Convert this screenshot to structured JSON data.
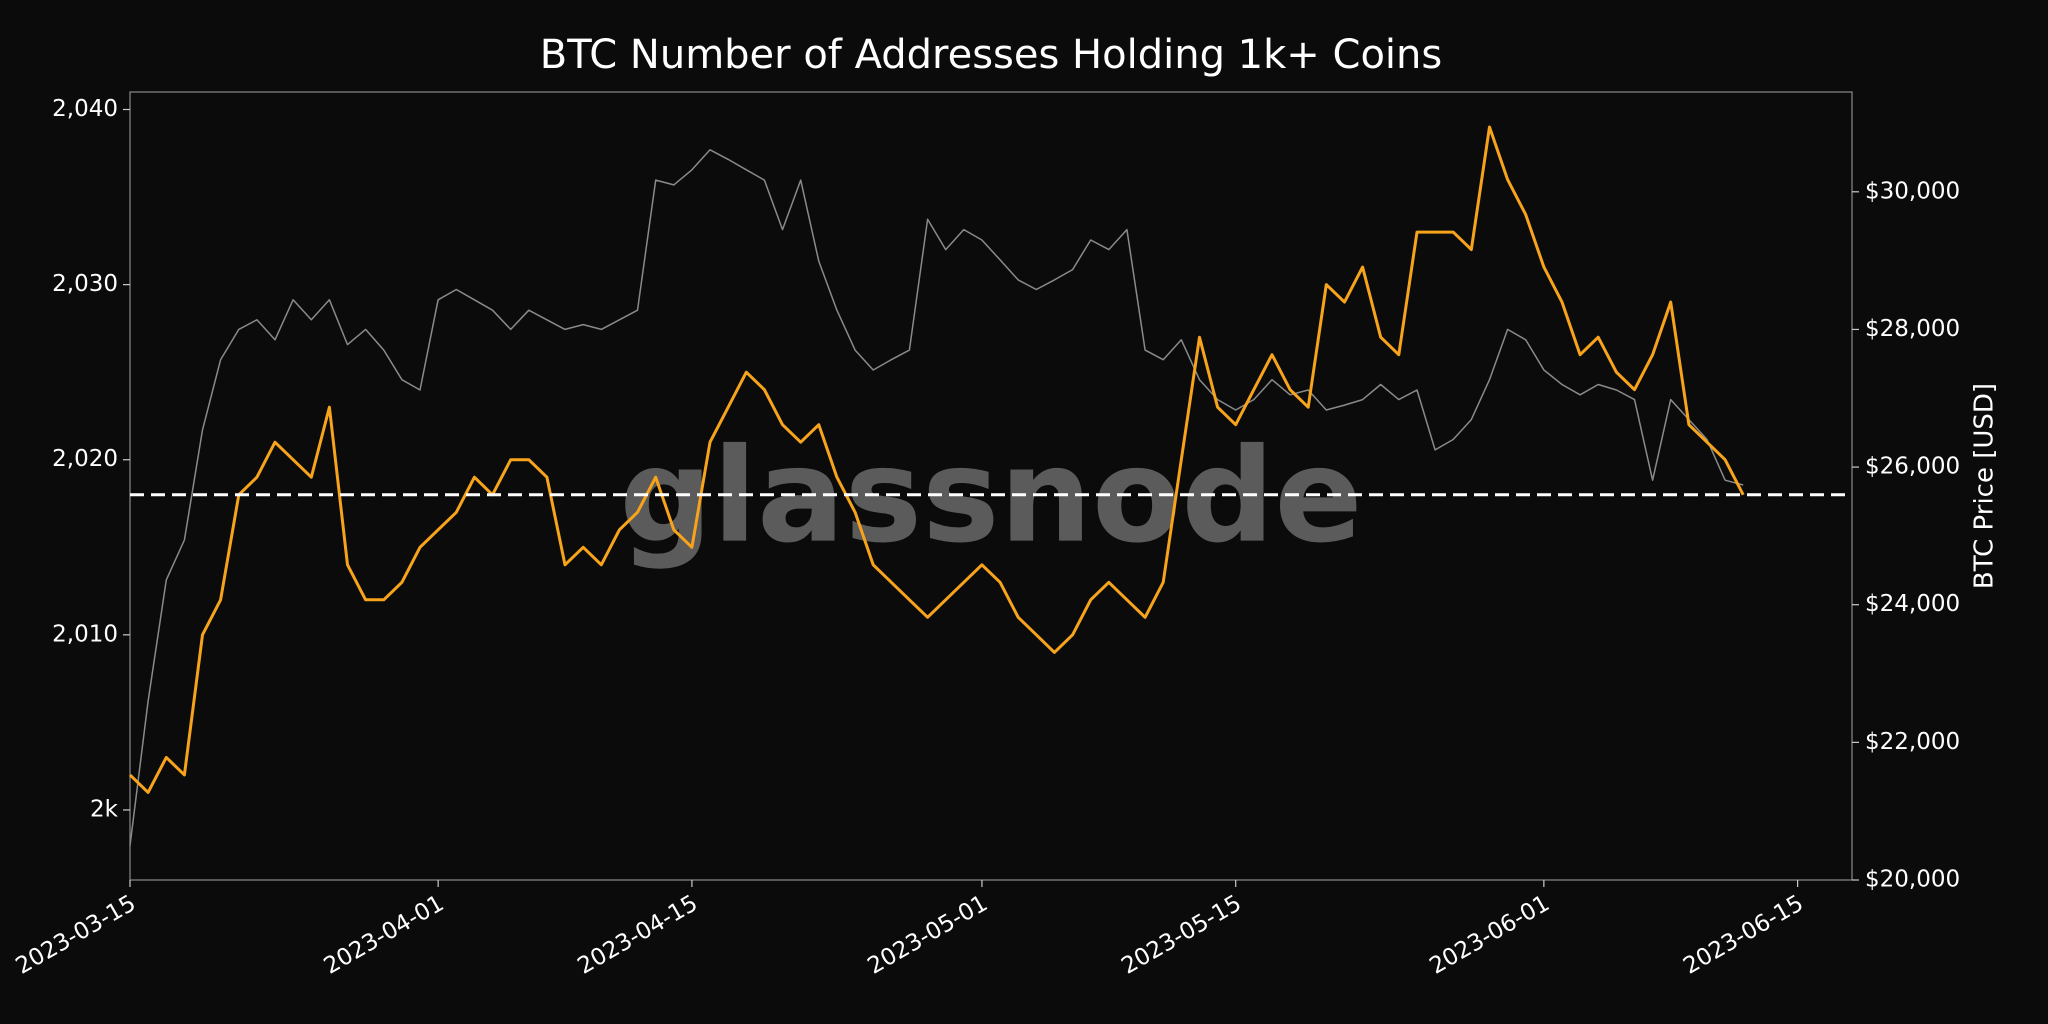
{
  "chart_data": {
    "type": "line",
    "title": "BTC Number of Addresses Holding 1k+ Coins",
    "y2_label": "BTC Price [USD]",
    "watermark": "glassnode",
    "x": [
      "2023-03-15",
      "2023-03-16",
      "2023-03-17",
      "2023-03-18",
      "2023-03-19",
      "2023-03-20",
      "2023-03-21",
      "2023-03-22",
      "2023-03-23",
      "2023-03-24",
      "2023-03-25",
      "2023-03-26",
      "2023-03-27",
      "2023-03-28",
      "2023-03-29",
      "2023-03-30",
      "2023-03-31",
      "2023-04-01",
      "2023-04-02",
      "2023-04-03",
      "2023-04-04",
      "2023-04-05",
      "2023-04-06",
      "2023-04-07",
      "2023-04-08",
      "2023-04-09",
      "2023-04-10",
      "2023-04-11",
      "2023-04-12",
      "2023-04-13",
      "2023-04-14",
      "2023-04-15",
      "2023-04-16",
      "2023-04-17",
      "2023-04-18",
      "2023-04-19",
      "2023-04-20",
      "2023-04-21",
      "2023-04-22",
      "2023-04-23",
      "2023-04-24",
      "2023-04-25",
      "2023-04-26",
      "2023-04-27",
      "2023-04-28",
      "2023-04-29",
      "2023-04-30",
      "2023-05-01",
      "2023-05-02",
      "2023-05-03",
      "2023-05-04",
      "2023-05-05",
      "2023-05-06",
      "2023-05-07",
      "2023-05-08",
      "2023-05-09",
      "2023-05-10",
      "2023-05-11",
      "2023-05-12",
      "2023-05-13",
      "2023-05-14",
      "2023-05-15",
      "2023-05-16",
      "2023-05-17",
      "2023-05-18",
      "2023-05-19",
      "2023-05-20",
      "2023-05-21",
      "2023-05-22",
      "2023-05-23",
      "2023-05-24",
      "2023-05-25",
      "2023-05-26",
      "2023-05-27",
      "2023-05-28",
      "2023-05-29",
      "2023-05-30",
      "2023-05-31",
      "2023-06-01",
      "2023-06-02",
      "2023-06-03",
      "2023-06-04",
      "2023-06-05",
      "2023-06-06",
      "2023-06-07",
      "2023-06-08",
      "2023-06-09",
      "2023-06-10",
      "2023-06-11",
      "2023-06-12"
    ],
    "series": [
      {
        "name": "Addresses",
        "color": "#f7a31c",
        "axis": "y",
        "values": [
          2002,
          2001,
          2003,
          2002,
          2010,
          2012,
          2018,
          2019,
          2021,
          2020,
          2019,
          2023,
          2014,
          2012,
          2012,
          2013,
          2015,
          2016,
          2017,
          2019,
          2018,
          2020,
          2020,
          2019,
          2014,
          2015,
          2014,
          2016,
          2017,
          2019,
          2016,
          2015,
          2021,
          2023,
          2025,
          2024,
          2022,
          2021,
          2022,
          2019,
          2017,
          2014,
          2013,
          2012,
          2011,
          2012,
          2013,
          2014,
          2013,
          2011,
          2010,
          2009,
          2010,
          2012,
          2013,
          2012,
          2011,
          2013,
          2020,
          2027,
          2023,
          2022,
          2024,
          2026,
          2024,
          2023,
          2030,
          2029,
          2031,
          2027,
          2026,
          2033,
          2033,
          2033,
          2032,
          2039,
          2036,
          2034,
          2031,
          2029,
          2026,
          2027,
          2025,
          2024,
          2026,
          2029,
          2022,
          2021,
          2020,
          2018
        ]
      },
      {
        "name": "BTC Price",
        "color": "#8a8a8a",
        "axis": "y2",
        "values": [
          20500,
          22600,
          24360,
          24940,
          26540,
          27560,
          28000,
          28140,
          27850,
          28430,
          28140,
          28430,
          27780,
          28000,
          27700,
          27270,
          27120,
          28430,
          28580,
          28430,
          28280,
          28000,
          28280,
          28140,
          28000,
          28070,
          28000,
          28140,
          28280,
          30170,
          30100,
          30320,
          30610,
          30470,
          30320,
          30170,
          29450,
          30170,
          28990,
          28280,
          27700,
          27410,
          27560,
          27700,
          29600,
          29160,
          29450,
          29300,
          29010,
          28720,
          28580,
          28720,
          28870,
          29300,
          29160,
          29450,
          27700,
          27560,
          27850,
          27270,
          26980,
          26830,
          26980,
          27270,
          27050,
          27120,
          26830,
          26900,
          26980,
          27200,
          26980,
          27120,
          26250,
          26400,
          26690,
          27270,
          28000,
          27850,
          27410,
          27200,
          27050,
          27200,
          27120,
          26980,
          25810,
          26980,
          26690,
          26400,
          25810,
          25740
        ]
      }
    ],
    "reference_line": 2018,
    "xlim": [
      "2023-03-15",
      "2023-06-18"
    ],
    "xticks": [
      "2023-03-15",
      "2023-04-01",
      "2023-04-15",
      "2023-05-01",
      "2023-05-15",
      "2023-06-01",
      "2023-06-15"
    ],
    "ylim": [
      1996,
      2041
    ],
    "yticks": [
      {
        "value": 2000,
        "label": "2k"
      },
      {
        "value": 2010,
        "label": "2,010"
      },
      {
        "value": 2020,
        "label": "2,020"
      },
      {
        "value": 2030,
        "label": "2,030"
      },
      {
        "value": 2040,
        "label": "2,040"
      }
    ],
    "y2lim": [
      20000,
      31450
    ],
    "y2ticks": [
      {
        "value": 20000,
        "label": "$20,000"
      },
      {
        "value": 22000,
        "label": "$22,000"
      },
      {
        "value": 24000,
        "label": "$24,000"
      },
      {
        "value": 26000,
        "label": "$26,000"
      },
      {
        "value": 28000,
        "label": "$28,000"
      },
      {
        "value": 30000,
        "label": "$30,000"
      }
    ]
  }
}
